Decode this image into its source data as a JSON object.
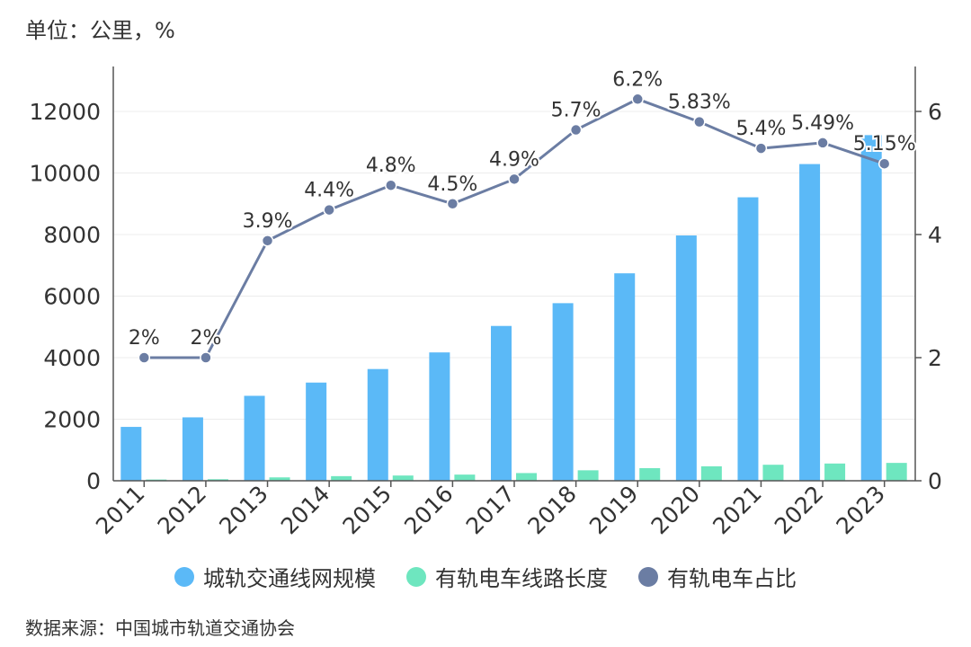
{
  "unit_label": "单位：公里，%",
  "source_label": "数据来源：中国城市轨道交通协会",
  "colors": {
    "network": "#5bb9f7",
    "tram": "#6ee6bf",
    "share": "#6b7da3",
    "grid": "#ececec",
    "axis": "#555555"
  },
  "chart_data": {
    "type": "bar",
    "categories": [
      "2011",
      "2012",
      "2013",
      "2014",
      "2015",
      "2016",
      "2017",
      "2018",
      "2019",
      "2020",
      "2021",
      "2022",
      "2023"
    ],
    "series": [
      {
        "name": "城轨交通线网规模",
        "type": "bar",
        "axis": "left",
        "values": [
          1750,
          2060,
          2760,
          3190,
          3630,
          4170,
          5030,
          5770,
          6740,
          7970,
          9210,
          10290,
          11230
        ]
      },
      {
        "name": "有轨电车线路长度",
        "type": "bar",
        "axis": "left",
        "values": [
          40,
          50,
          110,
          150,
          170,
          200,
          250,
          340,
          410,
          470,
          520,
          560,
          580
        ]
      },
      {
        "name": "有轨电车占比",
        "type": "line",
        "axis": "right",
        "values": [
          2,
          2,
          3.9,
          4.4,
          4.8,
          4.5,
          4.9,
          5.7,
          6.2,
          5.83,
          5.4,
          5.49,
          5.15
        ],
        "labels": [
          "2%",
          "2%",
          "3.9%",
          "4.4%",
          "4.8%",
          "4.5%",
          "4.9%",
          "5.7%",
          "6.2%",
          "5.83%",
          "5.4%",
          "5.49%",
          "5.15%"
        ]
      }
    ],
    "left_axis": {
      "min": 0,
      "max": 12000,
      "ticks": [
        "0",
        "2000",
        "4000",
        "6000",
        "8000",
        "10000",
        "12000"
      ]
    },
    "right_axis": {
      "min": 0,
      "max": 6,
      "ticks": [
        "0",
        "2",
        "4",
        "6"
      ]
    },
    "grid": true,
    "legend_position": "bottom"
  }
}
